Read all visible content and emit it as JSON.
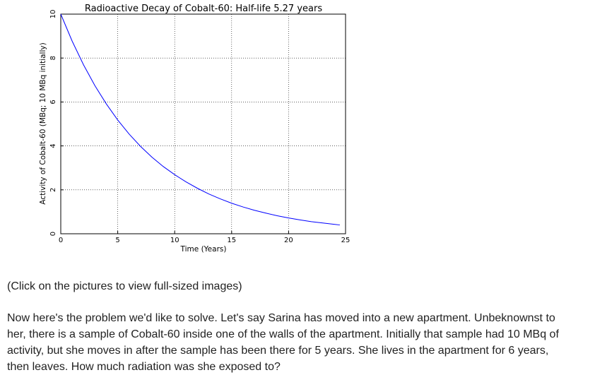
{
  "chart_data": {
    "type": "line",
    "title": "Radioactive Decay of Cobalt-60: Half-life 5.27 years",
    "xlabel": "Time (Years)",
    "ylabel": "Activity of Cobalt-60 (MBq; 10 MBq initially)",
    "x": [
      0,
      1,
      2,
      3,
      4,
      5,
      6,
      7,
      8,
      9,
      10,
      11,
      12,
      13,
      14,
      15,
      16,
      17,
      18,
      19,
      20,
      21,
      22,
      23,
      24,
      24.5
    ],
    "series": [
      {
        "color": "#0000ff",
        "values": [
          10,
          8.77,
          7.69,
          6.74,
          5.91,
          5.18,
          4.54,
          3.98,
          3.49,
          3.06,
          2.69,
          2.36,
          2.07,
          1.81,
          1.59,
          1.39,
          1.22,
          1.07,
          0.94,
          0.82,
          0.72,
          0.63,
          0.55,
          0.49,
          0.43,
          0.4
        ]
      }
    ],
    "xlim": [
      0,
      25
    ],
    "ylim": [
      0,
      10
    ],
    "xticks": [
      0,
      5,
      10,
      15,
      20,
      25
    ],
    "yticks": [
      0,
      2,
      4,
      6,
      8,
      10
    ],
    "grid": true
  },
  "text": {
    "note": "(Click on the pictures to view full-sized images)",
    "paragraph": [
      "Now here's the problem we'd like to solve. Let's say Sarina has moved into a new apartment. Unbeknownst to",
      "her, there is a sample of Cobalt-60 inside one of the walls of the apartment. Initially that sample had 10 MBq of",
      "activity, but she moves in after the sample has been there for 5 years. She lives in the apartment for 6 years,",
      "then leaves. How much radiation was she exposed to?"
    ]
  }
}
